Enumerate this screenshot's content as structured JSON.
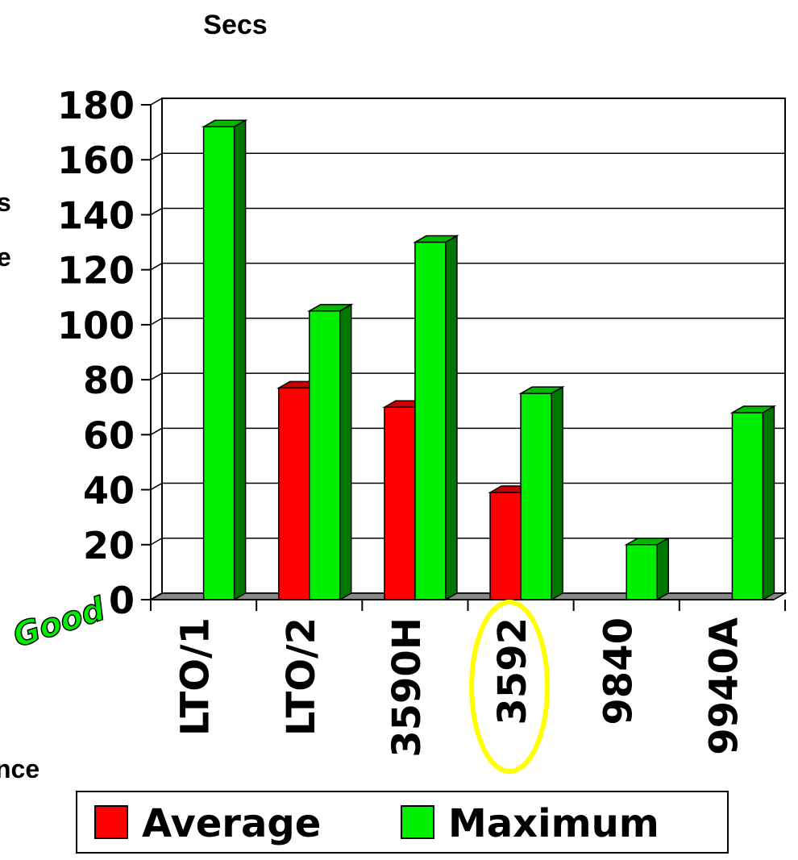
{
  "chart_data": {
    "type": "bar",
    "title": "Secs",
    "categories": [
      "LTO/1",
      "LTO/2",
      "3590H",
      "3592",
      "9840",
      "9940A"
    ],
    "series": [
      {
        "name": "Average",
        "color": "#ff0000",
        "values": [
          null,
          77,
          70,
          39,
          null,
          null
        ]
      },
      {
        "name": "Maximum",
        "color": "#00ee00",
        "values": [
          172,
          105,
          130,
          75,
          20,
          68
        ]
      }
    ],
    "yticks": [
      "0",
      "20",
      "40",
      "60",
      "80",
      "100",
      "120",
      "140",
      "160",
      "180"
    ],
    "ylim": [
      0,
      180
    ],
    "grid": true,
    "legend_position": "bottom",
    "highlighted_category": "3592",
    "highlight_color": "#ffff00",
    "annotations": {
      "good": "Good",
      "left_fragment_1": "s",
      "left_fragment_2": "e",
      "left_fragment_3": "nce"
    }
  }
}
